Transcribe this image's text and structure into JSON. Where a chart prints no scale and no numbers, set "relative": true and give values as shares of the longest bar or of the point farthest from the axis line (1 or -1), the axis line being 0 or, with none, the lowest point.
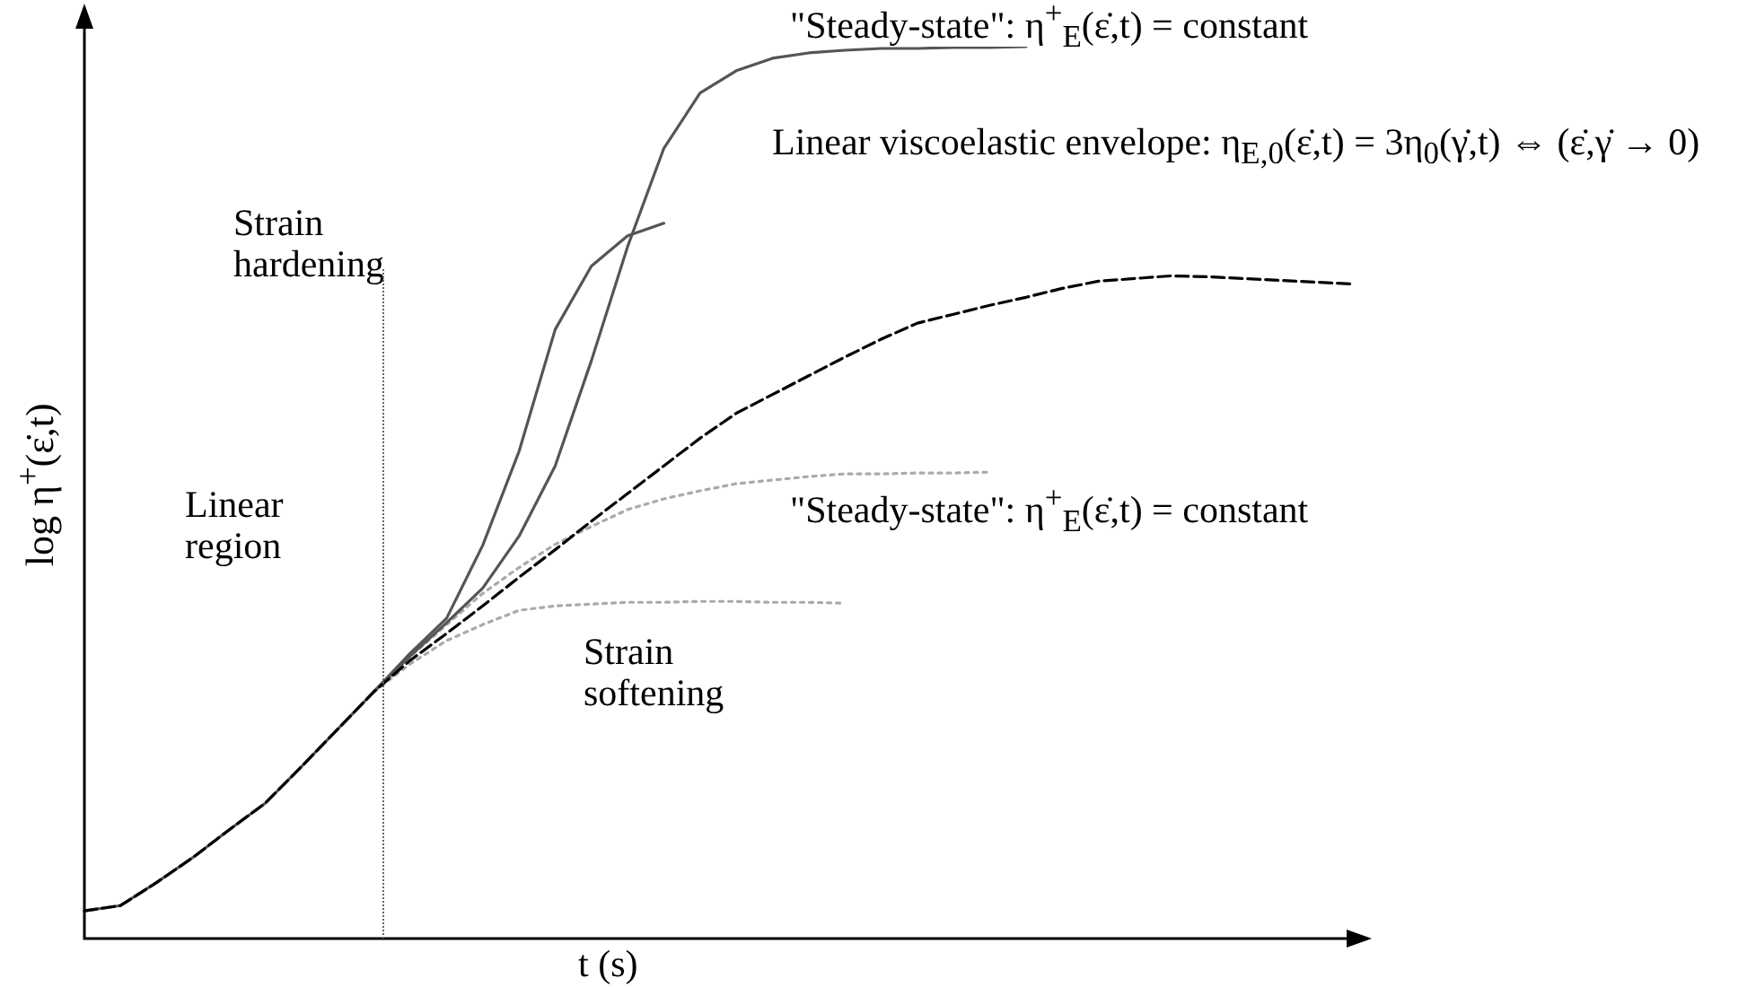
{
  "chart_data": {
    "type": "line",
    "relative": true,
    "marker": "none",
    "xlabel": "t (s)",
    "ylabel": "log η$^{+}$(ε̇,t)",
    "annotations": [
      "\"Steady-state\": η$^{+}$$_{E}$(ε̇,t) = constant",
      "Linear viscoelastic envelope: η$_{E,0}$(ε̇,t) = 3η$_{0}$(γ̇,t) ⇔ (ε̇,γ̇ → 0)",
      "\"Steady-state\": η$^{+}$$_{E}$(ε̇,t) = constant",
      "Strain hardening",
      "Linear region",
      "Strain softening"
    ],
    "categories": [
      null,
      null,
      null,
      null,
      null,
      null,
      null,
      null,
      null,
      null,
      null,
      null,
      null,
      null,
      null,
      null,
      null,
      null,
      null,
      null,
      null,
      null,
      null,
      null,
      null,
      null,
      null,
      null,
      null,
      null,
      null,
      null,
      null,
      null,
      null,
      null
    ],
    "series": [
      {
        "color": "#000000",
        "line_style": "dashed",
        "values": [
          0.031,
          0.037,
          0.063,
          0.091,
          0.122,
          0.152,
          0.193,
          0.235,
          0.277,
          0.312,
          0.342,
          0.373,
          0.405,
          0.436,
          0.468,
          0.499,
          0.53,
          0.561,
          0.589,
          0.61,
          0.631,
          0.652,
          0.672,
          0.69,
          0.7,
          0.71,
          0.719,
          0.729,
          0.737,
          0.74,
          0.743,
          0.742,
          0.74,
          0.738,
          0.736,
          0.734
        ]
      },
      {
        "color": "#555555",
        "line_style": "solid",
        "values": [
          0.031,
          0.037,
          0.063,
          0.091,
          0.122,
          0.152,
          0.193,
          0.235,
          0.277,
          0.317,
          0.354,
          0.393,
          0.451,
          0.53,
          0.648,
          0.776,
          0.886,
          0.948,
          0.973,
          0.987,
          0.993,
          0.996,
          0.998,
          0.998,
          0.999,
          0.999,
          1,
          null,
          null,
          null,
          null,
          null,
          null,
          null,
          null,
          null
        ]
      },
      {
        "color": "#555555",
        "line_style": "solid",
        "values": [
          null,
          null,
          null,
          null,
          null,
          null,
          null,
          null,
          0.277,
          0.32,
          0.359,
          0.441,
          0.546,
          0.683,
          0.754,
          0.788,
          0.802,
          null,
          null,
          null,
          null,
          null,
          null,
          null,
          null,
          null,
          null,
          null,
          null,
          null,
          null,
          null,
          null,
          null,
          null,
          null
        ]
      },
      {
        "color": "#aaaaaa",
        "line_style": "dotted",
        "values": [
          null,
          null,
          null,
          null,
          null,
          null,
          null,
          null,
          0.277,
          0.316,
          0.352,
          0.387,
          0.416,
          0.442,
          0.462,
          0.481,
          0.493,
          0.502,
          0.51,
          0.514,
          0.518,
          0.521,
          0.521,
          0.522,
          0.522,
          0.523,
          null,
          null,
          null,
          null,
          null,
          null,
          null,
          null,
          null,
          null
        ]
      },
      {
        "color": "#aaaaaa",
        "line_style": "dotted",
        "values": [
          null,
          null,
          null,
          null,
          null,
          null,
          null,
          null,
          0.277,
          0.308,
          0.334,
          0.352,
          0.368,
          0.373,
          0.375,
          0.377,
          0.377,
          0.378,
          0.378,
          0.377,
          0.377,
          0.376,
          null,
          null,
          null,
          null,
          null,
          null,
          null,
          null,
          null,
          null,
          null,
          null,
          null,
          null
        ]
      }
    ]
  }
}
